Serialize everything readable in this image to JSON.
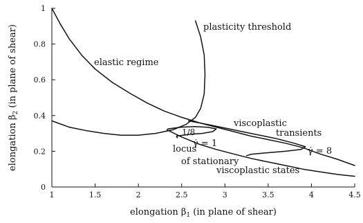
{
  "chart_data": {
    "type": "line",
    "xlabel": "elongation β1 (in plane of shear)",
    "ylabel": "elongation β2 (in plane of shear)",
    "xlim": [
      1,
      4.5
    ],
    "ylim": [
      0,
      1
    ],
    "x_ticks": [
      "1",
      "1.5",
      "2",
      "2.5",
      "3",
      "3.5",
      "4",
      "4.5"
    ],
    "y_ticks": [
      "0",
      "0.2",
      "0.4",
      "0.6",
      "0.8",
      "1"
    ],
    "grid": false,
    "series": [
      {
        "points": [
          [
            1.0,
            1.0
          ],
          [
            1.1,
            0.91
          ],
          [
            1.2,
            0.83
          ],
          [
            1.35,
            0.735
          ],
          [
            1.5,
            0.66
          ],
          [
            1.7,
            0.585
          ],
          [
            1.9,
            0.525
          ],
          [
            2.1,
            0.47
          ],
          [
            2.3,
            0.425
          ],
          [
            2.5,
            0.39
          ],
          [
            2.7,
            0.36
          ],
          [
            2.9,
            0.335
          ],
          [
            3.1,
            0.31
          ],
          [
            3.3,
            0.285
          ],
          [
            3.5,
            0.265
          ],
          [
            3.7,
            0.245
          ],
          [
            3.9,
            0.22
          ],
          [
            4.1,
            0.185
          ],
          [
            4.3,
            0.155
          ],
          [
            4.5,
            0.12
          ]
        ]
      },
      {
        "points": [
          [
            2.66,
            0.93
          ],
          [
            2.72,
            0.84
          ],
          [
            2.76,
            0.74
          ],
          [
            2.77,
            0.63
          ],
          [
            2.76,
            0.52
          ],
          [
            2.72,
            0.44
          ],
          [
            2.66,
            0.39
          ],
          [
            2.55,
            0.35
          ],
          [
            2.4,
            0.32
          ],
          [
            2.2,
            0.3
          ],
          [
            2.0,
            0.29
          ],
          [
            1.8,
            0.29
          ],
          [
            1.6,
            0.3
          ],
          [
            1.4,
            0.315
          ],
          [
            1.2,
            0.335
          ],
          [
            1.0,
            0.37
          ]
        ]
      },
      {
        "points": [
          [
            2.33,
            0.32
          ],
          [
            2.5,
            0.28
          ],
          [
            2.7,
            0.24
          ],
          [
            2.9,
            0.21
          ],
          [
            3.1,
            0.185
          ],
          [
            3.3,
            0.16
          ],
          [
            3.5,
            0.14
          ],
          [
            3.7,
            0.12
          ],
          [
            3.9,
            0.1
          ],
          [
            4.1,
            0.085
          ],
          [
            4.3,
            0.07
          ],
          [
            4.5,
            0.06
          ]
        ]
      },
      {
        "points": [
          [
            2.34,
            0.325
          ],
          [
            2.5,
            0.335
          ],
          [
            2.65,
            0.338
          ],
          [
            2.8,
            0.334
          ],
          [
            2.9,
            0.325
          ],
          [
            2.86,
            0.31
          ],
          [
            2.74,
            0.3
          ],
          [
            2.6,
            0.295
          ],
          [
            2.44,
            0.285
          ],
          [
            2.45,
            0.275
          ]
        ]
      },
      {
        "points": [
          [
            2.58,
            0.37
          ],
          [
            2.8,
            0.35
          ],
          [
            3.0,
            0.33
          ],
          [
            3.3,
            0.3
          ],
          [
            3.6,
            0.27
          ],
          [
            3.8,
            0.245
          ],
          [
            3.93,
            0.225
          ],
          [
            3.88,
            0.21
          ],
          [
            3.7,
            0.2
          ],
          [
            3.45,
            0.19
          ],
          [
            3.3,
            0.183
          ],
          [
            3.25,
            0.175
          ]
        ]
      }
    ],
    "annotations": {
      "plasticity": "plasticity threshold",
      "elastic": "elastic regime",
      "visco1": "viscoplastic",
      "visco2": "transients",
      "frac": "1/8",
      "g1": "γ̇ = 1",
      "g8": "γ̇ = 8",
      "locus1": "locus",
      "locus2": "of stationary",
      "states": "viscoplastic states"
    }
  }
}
